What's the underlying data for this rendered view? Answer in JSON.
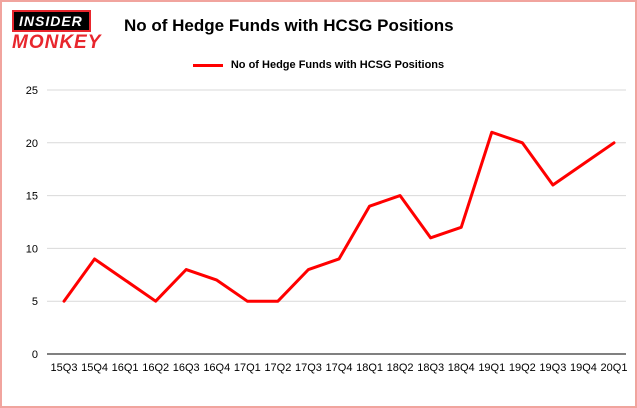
{
  "logo": {
    "line1": "INSIDER",
    "line2": "MONKEY"
  },
  "header": {
    "title": "No of Hedge Funds with HCSG Positions"
  },
  "legend": {
    "label": "No of Hedge Funds with HCSG Positions"
  },
  "chart_data": {
    "type": "line",
    "title": "No of Hedge Funds with HCSG Positions",
    "legend": "No of Hedge Funds with HCSG Positions",
    "categories": [
      "15Q3",
      "15Q4",
      "16Q1",
      "16Q2",
      "16Q3",
      "16Q4",
      "17Q1",
      "17Q2",
      "17Q3",
      "17Q4",
      "18Q1",
      "18Q2",
      "18Q3",
      "18Q4",
      "19Q1",
      "19Q2",
      "19Q3",
      "19Q4",
      "20Q1"
    ],
    "values": [
      5,
      9,
      7,
      5,
      8,
      7,
      5,
      5,
      8,
      9,
      14,
      15,
      11,
      12,
      21,
      20,
      16,
      18,
      20
    ],
    "xlabel": "",
    "ylabel": "",
    "ylim": [
      0,
      25
    ],
    "yticks": [
      0,
      5,
      10,
      15,
      20,
      25
    ],
    "grid": true,
    "legend_position": "top",
    "line_color": "#ff0000"
  },
  "colors": {
    "accent_red": "#e8262d",
    "line": "#ff0000",
    "frame_border": "#f1a49e",
    "gridline": "#d9d9d9",
    "axis": "#000000"
  }
}
